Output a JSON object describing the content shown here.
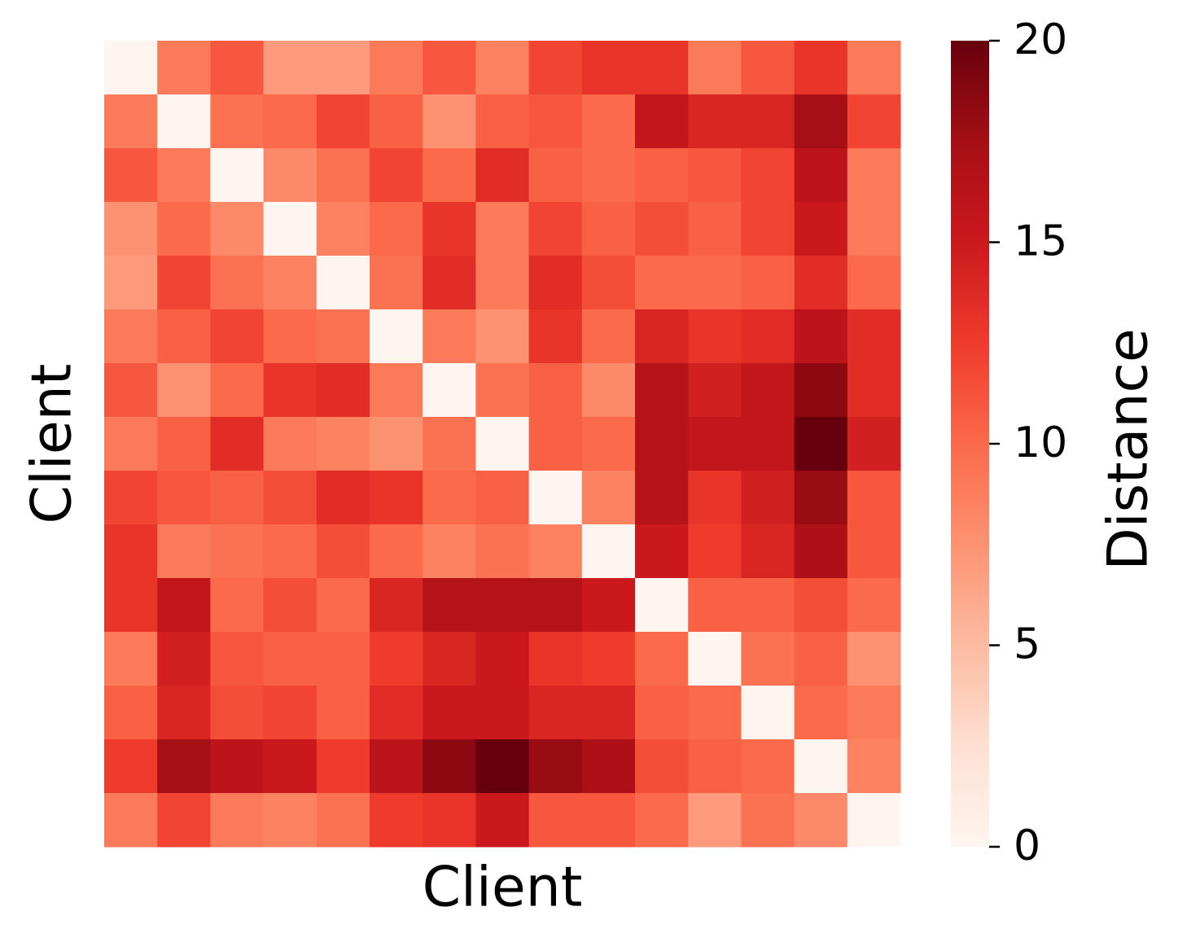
{
  "chart_data": {
    "type": "heatmap",
    "xlabel": "Client",
    "ylabel": "Client",
    "colormap": "Reds",
    "z": [
      [
        0,
        9,
        11,
        7,
        7,
        9,
        11,
        8.5,
        12,
        13,
        13,
        9,
        11,
        13,
        9
      ],
      [
        9,
        0,
        9.5,
        10,
        12,
        10.5,
        7.5,
        10.5,
        11,
        10,
        15.5,
        14,
        14,
        17.5,
        12
      ],
      [
        11,
        9,
        0,
        8,
        9.5,
        12,
        10,
        13.5,
        10.5,
        10,
        10.5,
        11,
        12,
        16,
        9
      ],
      [
        7.5,
        10,
        8,
        0,
        8.5,
        10,
        13,
        9,
        12,
        10.5,
        11.5,
        10.5,
        12,
        15,
        9
      ],
      [
        7,
        12,
        9.5,
        8.5,
        0,
        9.5,
        13.5,
        9,
        13.5,
        11.5,
        10,
        10,
        10.5,
        13.5,
        10
      ],
      [
        9,
        10.5,
        12,
        10,
        9.5,
        0,
        9,
        7.5,
        13,
        10,
        14,
        13,
        13.5,
        16,
        13.5
      ],
      [
        11,
        7.5,
        10,
        13,
        13.5,
        9,
        0,
        9.5,
        10.5,
        8,
        16.5,
        14.5,
        15.5,
        18.5,
        13.5
      ],
      [
        9,
        10.5,
        13.5,
        9,
        8.5,
        7.5,
        9.5,
        0,
        10.5,
        10,
        16.5,
        15.5,
        15.5,
        20,
        14.5
      ],
      [
        12,
        11,
        10.5,
        11.5,
        13.5,
        13,
        10,
        10.5,
        0,
        8.5,
        16.5,
        13,
        14.5,
        18,
        11
      ],
      [
        13,
        9,
        9.5,
        10,
        11.5,
        10,
        8.5,
        9.5,
        8.5,
        0,
        15,
        12.5,
        14,
        17,
        11
      ],
      [
        13,
        15.5,
        10,
        11.5,
        10,
        14,
        16.5,
        16.5,
        16.5,
        15,
        0,
        10.5,
        10.5,
        11.5,
        10
      ],
      [
        9,
        14.5,
        11,
        10.5,
        10.5,
        12.5,
        14,
        15,
        13,
        12.5,
        10,
        0,
        9.5,
        10.5,
        7.5
      ],
      [
        10.5,
        14,
        11.5,
        12,
        10.5,
        13.5,
        15,
        15,
        14,
        14,
        10.5,
        10,
        0,
        10,
        9
      ],
      [
        12.5,
        17.5,
        16,
        15,
        12.5,
        16,
        18.5,
        20,
        18,
        17,
        11.5,
        10.5,
        10,
        0,
        8.5
      ],
      [
        9,
        12,
        9,
        8.5,
        9.5,
        12.5,
        13,
        15,
        11,
        11,
        10,
        7,
        9.5,
        8,
        0
      ]
    ],
    "zlim": [
      0,
      20
    ],
    "colorbar": {
      "label": "Distance",
      "ticks": [
        0,
        5,
        10,
        15,
        20
      ]
    }
  }
}
